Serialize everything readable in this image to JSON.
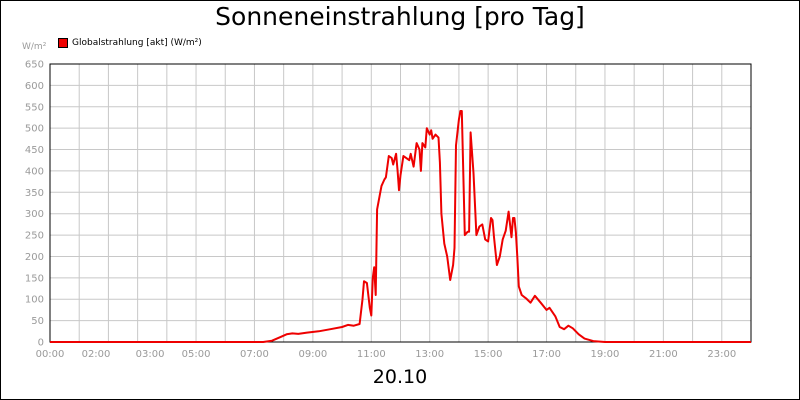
{
  "chart_data": {
    "type": "line",
    "title": "Sonneneinstrahlung [pro Tag]",
    "ylabel": "W/m²",
    "xlabel": "20.10",
    "ylim": [
      0,
      650
    ],
    "xlim": [
      0,
      24
    ],
    "grid": true,
    "legend_position": "top-left",
    "y_ticks": [
      "0",
      "50",
      "100",
      "150",
      "200",
      "250",
      "300",
      "350",
      "400",
      "450",
      "500",
      "550",
      "600",
      "650"
    ],
    "x_ticks": [
      {
        "value": 0,
        "label": "00:00"
      },
      {
        "value": 2,
        "label": "02:00"
      },
      {
        "value": 3,
        "label": "03:00"
      },
      {
        "value": 5,
        "label": "05:00"
      },
      {
        "value": 7,
        "label": "07:00"
      },
      {
        "value": 9,
        "label": "09:00"
      },
      {
        "value": 11,
        "label": "11:00"
      },
      {
        "value": 13,
        "label": "13:00"
      },
      {
        "value": 15,
        "label": "15:00"
      },
      {
        "value": 17,
        "label": "17:00"
      },
      {
        "value": 19,
        "label": "19:00"
      },
      {
        "value": 21,
        "label": "21:00"
      },
      {
        "value": 23,
        "label": "23:00"
      }
    ],
    "colors": {
      "series": "#ee0000",
      "grid": "#c8c8c8",
      "axis": "#000000",
      "tick": "#9a9a9a"
    },
    "series": [
      {
        "name": "Globalstrahlung [akt] (W/m²)",
        "points": [
          [
            0,
            0
          ],
          [
            7.3,
            0
          ],
          [
            7.6,
            3
          ],
          [
            7.9,
            12
          ],
          [
            8.1,
            18
          ],
          [
            8.3,
            20
          ],
          [
            8.5,
            19
          ],
          [
            8.8,
            22
          ],
          [
            9.2,
            25
          ],
          [
            9.6,
            30
          ],
          [
            10,
            35
          ],
          [
            10.2,
            40
          ],
          [
            10.4,
            38
          ],
          [
            10.6,
            42
          ],
          [
            10.7,
            100
          ],
          [
            10.75,
            142
          ],
          [
            10.85,
            138
          ],
          [
            10.95,
            80
          ],
          [
            11,
            62
          ],
          [
            11.05,
            150
          ],
          [
            11.1,
            175
          ],
          [
            11.15,
            110
          ],
          [
            11.2,
            310
          ],
          [
            11.35,
            365
          ],
          [
            11.45,
            380
          ],
          [
            11.5,
            385
          ],
          [
            11.6,
            435
          ],
          [
            11.7,
            430
          ],
          [
            11.75,
            415
          ],
          [
            11.85,
            440
          ],
          [
            11.9,
            400
          ],
          [
            11.95,
            355
          ],
          [
            12,
            390
          ],
          [
            12.1,
            435
          ],
          [
            12.2,
            430
          ],
          [
            12.3,
            425
          ],
          [
            12.35,
            440
          ],
          [
            12.45,
            410
          ],
          [
            12.55,
            465
          ],
          [
            12.65,
            450
          ],
          [
            12.7,
            400
          ],
          [
            12.75,
            465
          ],
          [
            12.85,
            455
          ],
          [
            12.9,
            500
          ],
          [
            13,
            485
          ],
          [
            13.05,
            495
          ],
          [
            13.1,
            475
          ],
          [
            13.2,
            485
          ],
          [
            13.3,
            478
          ],
          [
            13.35,
            420
          ],
          [
            13.4,
            300
          ],
          [
            13.5,
            230
          ],
          [
            13.6,
            200
          ],
          [
            13.7,
            145
          ],
          [
            13.8,
            180
          ],
          [
            13.85,
            220
          ],
          [
            13.9,
            460
          ],
          [
            14,
            520
          ],
          [
            14.05,
            540
          ],
          [
            14.1,
            540
          ],
          [
            14.2,
            250
          ],
          [
            14.3,
            258
          ],
          [
            14.35,
            258
          ],
          [
            14.4,
            490
          ],
          [
            14.5,
            395
          ],
          [
            14.6,
            250
          ],
          [
            14.7,
            270
          ],
          [
            14.8,
            275
          ],
          [
            14.9,
            240
          ],
          [
            15,
            235
          ],
          [
            15.1,
            290
          ],
          [
            15.15,
            285
          ],
          [
            15.2,
            245
          ],
          [
            15.3,
            180
          ],
          [
            15.4,
            200
          ],
          [
            15.5,
            240
          ],
          [
            15.6,
            260
          ],
          [
            15.7,
            305
          ],
          [
            15.8,
            245
          ],
          [
            15.85,
            290
          ],
          [
            15.9,
            290
          ],
          [
            15.95,
            255
          ],
          [
            16,
            200
          ],
          [
            16.05,
            130
          ],
          [
            16.15,
            110
          ],
          [
            16.3,
            102
          ],
          [
            16.45,
            92
          ],
          [
            16.6,
            108
          ],
          [
            16.8,
            92
          ],
          [
            17,
            75
          ],
          [
            17.1,
            80
          ],
          [
            17.2,
            70
          ],
          [
            17.3,
            60
          ],
          [
            17.45,
            35
          ],
          [
            17.6,
            30
          ],
          [
            17.75,
            38
          ],
          [
            17.9,
            32
          ],
          [
            18.1,
            18
          ],
          [
            18.3,
            8
          ],
          [
            18.6,
            2
          ],
          [
            19,
            0
          ],
          [
            24,
            0
          ]
        ]
      }
    ]
  }
}
